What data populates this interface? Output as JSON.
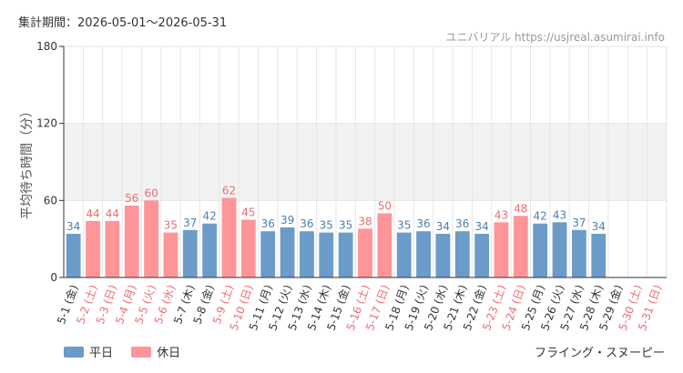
{
  "header": {
    "period_label": "集計期間：2026-05-01〜2026-05-31",
    "source": "ユニバリアル https://usjreal.asumirai.info"
  },
  "footer": {
    "attraction": "フライング・スヌーピー"
  },
  "legend": [
    {
      "label": "平日",
      "color": "#6b9bc9"
    },
    {
      "label": "休日",
      "color": "#ff9599"
    }
  ],
  "colors": {
    "weekday": "#6b9bc9",
    "holiday": "#ff9599",
    "weekday_label": "#4f7fad",
    "holiday_label": "#ec6d73",
    "band": "#f2f2f2",
    "grid": "#e6e6e6",
    "axis": "#333333"
  },
  "chart_data": {
    "type": "bar",
    "title": "",
    "xlabel": "",
    "ylabel": "平均待ち時間（分）",
    "ylim": [
      0,
      180
    ],
    "yticks": [
      0,
      60,
      120,
      180
    ],
    "shaded_band": [
      60,
      120
    ],
    "grid": true,
    "legend_position": "bottom-left",
    "categories": [
      "5-1 (金)",
      "5-2 (土)",
      "5-3 (日)",
      "5-4 (月)",
      "5-5 (火)",
      "5-6 (水)",
      "5-7 (木)",
      "5-8 (金)",
      "5-9 (土)",
      "5-10 (日)",
      "5-11 (月)",
      "5-12 (火)",
      "5-13 (水)",
      "5-14 (木)",
      "5-15 (金)",
      "5-16 (土)",
      "5-17 (日)",
      "5-18 (月)",
      "5-19 (火)",
      "5-20 (水)",
      "5-21 (木)",
      "5-22 (金)",
      "5-23 (土)",
      "5-24 (日)",
      "5-25 (月)",
      "5-26 (火)",
      "5-27 (水)",
      "5-28 (木)",
      "5-29 (金)",
      "5-30 (土)",
      "5-31 (日)"
    ],
    "day_type": [
      "weekday",
      "holiday",
      "holiday",
      "holiday",
      "holiday",
      "holiday",
      "weekday",
      "weekday",
      "holiday",
      "holiday",
      "weekday",
      "weekday",
      "weekday",
      "weekday",
      "weekday",
      "holiday",
      "holiday",
      "weekday",
      "weekday",
      "weekday",
      "weekday",
      "weekday",
      "holiday",
      "holiday",
      "weekday",
      "weekday",
      "weekday",
      "weekday",
      "weekday",
      "holiday",
      "holiday"
    ],
    "values": [
      34,
      44,
      44,
      56,
      60,
      35,
      37,
      42,
      62,
      45,
      36,
      39,
      36,
      35,
      35,
      38,
      50,
      35,
      36,
      34,
      36,
      34,
      43,
      48,
      42,
      43,
      37,
      34,
      null,
      null,
      null
    ],
    "series": [
      {
        "name": "平日"
      },
      {
        "name": "休日"
      }
    ]
  }
}
